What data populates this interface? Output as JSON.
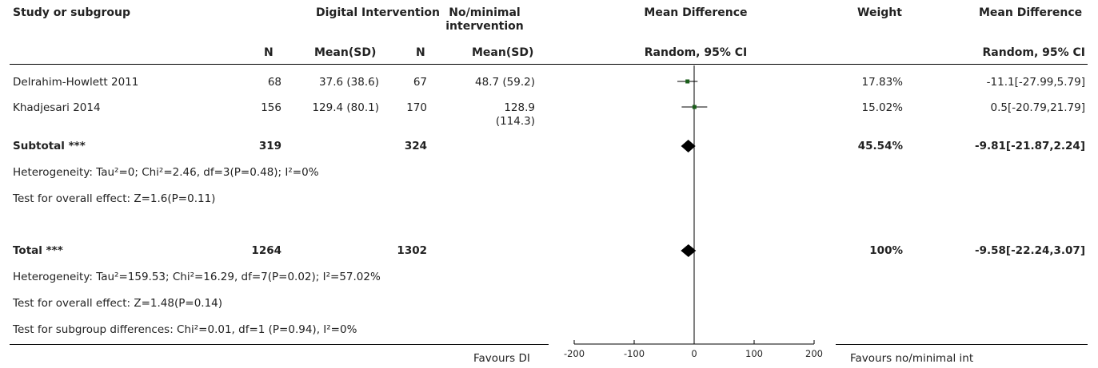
{
  "header": {
    "study": "Study or subgroup",
    "group1": "Digital Intervention",
    "group2": "No/minimal intervention",
    "md_col": "Mean Difference",
    "weight": "Weight",
    "md_ci_col": "Mean Difference",
    "n1": "N",
    "mean1": "Mean(SD)",
    "n2": "N",
    "mean2": "Mean(SD)",
    "md_sub": "Random, 95% CI",
    "md_ci_sub": "Random, 95% CI"
  },
  "studies": [
    {
      "name": "Delrahim-Howlett 2011",
      "n1": "68",
      "mean1": "37.6 (38.6)",
      "n2": "67",
      "mean2": "48.7 (59.2)",
      "weight": "17.83%",
      "ci": "-11.1[-27.99,5.79]"
    },
    {
      "name": "Khadjesari 2014",
      "n1": "156",
      "mean1": "129.4 (80.1)",
      "n2": "170",
      "mean2": "128.9 (114.3)",
      "weight": "15.02%",
      "ci": "0.5[-20.79,21.79]"
    }
  ],
  "subtotal": {
    "label": "Subtotal ***",
    "n1": "319",
    "n2": "324",
    "weight": "45.54%",
    "ci": "-9.81[-21.87,2.24]"
  },
  "subtotal_het": "Heterogeneity: Tau²=0; Chi²=2.46, df=3(P=0.48); I²=0%",
  "subtotal_test": "Test for overall effect: Z=1.6(P=0.11)",
  "total": {
    "label": "Total ***",
    "n1": "1264",
    "n2": "1302",
    "weight": "100%",
    "ci": "-9.58[-22.24,3.07]"
  },
  "total_het": "Heterogeneity: Tau²=159.53; Chi²=16.29, df=7(P=0.02); I²=57.02%",
  "total_test": "Test for overall effect: Z=1.48(P=0.14)",
  "subgroup_test": "Test for subgroup differences: Chi²=0.01, df=1 (P=0.94), I²=0%",
  "footer": {
    "favours_left": "Favours DI",
    "favours_right": "Favours no/minimal int"
  },
  "chart_data": {
    "type": "forest",
    "x_ticks": [
      -200,
      -100,
      0,
      100,
      200
    ],
    "xlim": [
      -200,
      200
    ],
    "studies": [
      {
        "name": "Delrahim-Howlett 2011",
        "md": -11.1,
        "lo": -27.99,
        "hi": 5.79,
        "weight": 17.83
      },
      {
        "name": "Khadjesari 2014",
        "md": 0.5,
        "lo": -20.79,
        "hi": 21.79,
        "weight": 15.02
      }
    ],
    "summaries": [
      {
        "name": "Subtotal ***",
        "md": -9.81,
        "lo": -21.87,
        "hi": 2.24
      },
      {
        "name": "Total ***",
        "md": -9.58,
        "lo": -22.24,
        "hi": 3.07
      }
    ],
    "colors": {
      "point": "#1a5e1a",
      "line": "#000000",
      "axis": "#000000"
    }
  }
}
